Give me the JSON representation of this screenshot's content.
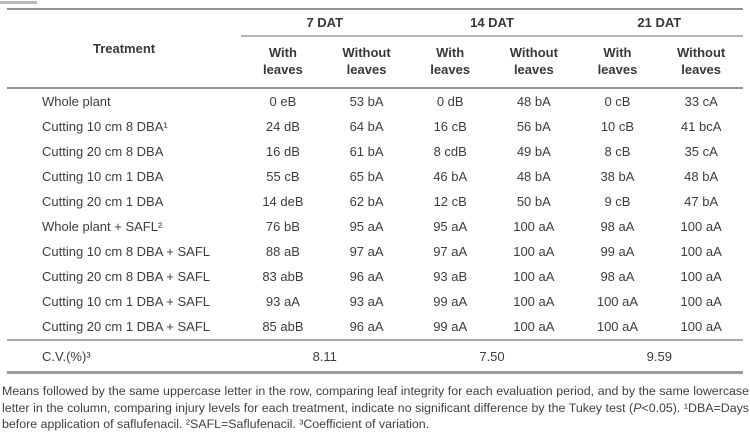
{
  "colors": {
    "rule_dark": "#939393",
    "rule_light": "#b5b5b5",
    "text": "#3d3d3d"
  },
  "header": {
    "treatment": "Treatment",
    "groups": [
      "7 DAT",
      "14 DAT",
      "21 DAT"
    ],
    "subcols": [
      {
        "top": "With",
        "bottom": "leaves"
      },
      {
        "top": "Without",
        "bottom": "leaves"
      },
      {
        "top": "With",
        "bottom": "leaves"
      },
      {
        "top": "Without",
        "bottom": "leaves"
      },
      {
        "top": "With",
        "bottom": "leaves"
      },
      {
        "top": "Without",
        "bottom": "leaves"
      }
    ]
  },
  "rows": [
    {
      "treatment": "Whole plant",
      "values": [
        "0 eB",
        "53 bA",
        "0 dB",
        "48 bA",
        "0 cB",
        "33 cA"
      ]
    },
    {
      "treatment": "Cutting 10 cm 8 DBA¹",
      "values": [
        "24 dB",
        "64 bA",
        "16 cB",
        "56 bA",
        "10 cB",
        "41 bcA"
      ]
    },
    {
      "treatment": "Cutting 20 cm 8 DBA",
      "values": [
        "16 dB",
        "61 bA",
        "8 cdB",
        "49 bA",
        "8 cB",
        "35 cA"
      ]
    },
    {
      "treatment": "Cutting 10 cm 1 DBA",
      "values": [
        "55 cB",
        "65 bA",
        "46 bA",
        "48 bA",
        "38 bA",
        "48 bA"
      ]
    },
    {
      "treatment": "Cutting 20 cm 1 DBA",
      "values": [
        "14 deB",
        "62 bA",
        "12 cB",
        "50 bA",
        "9 cB",
        "47 bA"
      ]
    },
    {
      "treatment": "Whole plant + SAFL²",
      "values": [
        "76 bB",
        "95 aA",
        "95 aA",
        "100 aA",
        "98 aA",
        "100 aA"
      ]
    },
    {
      "treatment": "Cutting 10 cm 8 DBA + SAFL",
      "values": [
        "88 aB",
        "97 aA",
        "97 aA",
        "100 aA",
        "99 aA",
        "100 aA"
      ]
    },
    {
      "treatment": "Cutting 20 cm 8 DBA + SAFL",
      "values": [
        "83 abB",
        "96 aA",
        "93 aB",
        "100 aA",
        "98 aA",
        "100 aA"
      ]
    },
    {
      "treatment": "Cutting 10 cm 1 DBA + SAFL",
      "values": [
        "93 aA",
        "93 aA",
        "99 aA",
        "100 aA",
        "100 aA",
        "100 aA"
      ]
    },
    {
      "treatment": "Cutting 20 cm 1 DBA + SAFL",
      "values": [
        "85 abB",
        "96 aA",
        "99 aA",
        "100 aA",
        "100 aA",
        "100 aA"
      ]
    }
  ],
  "cv": {
    "label": "C.V.(%)³",
    "values": [
      "8.11",
      "7.50",
      "9.59"
    ]
  },
  "footnote": {
    "text_before_p": "Means followed by the same uppercase letter in the row, comparing leaf integrity for each evaluation period, and by the same lowercase letter in the column, comparing injury levels for each treatment, indicate no significant difference by the Tukey test (",
    "p": "P",
    "text_after_p": "<0.05). ¹DBA=Days before application of saflufenacil. ²SAFL=Saflufenacil. ³Coefficient of variation."
  }
}
